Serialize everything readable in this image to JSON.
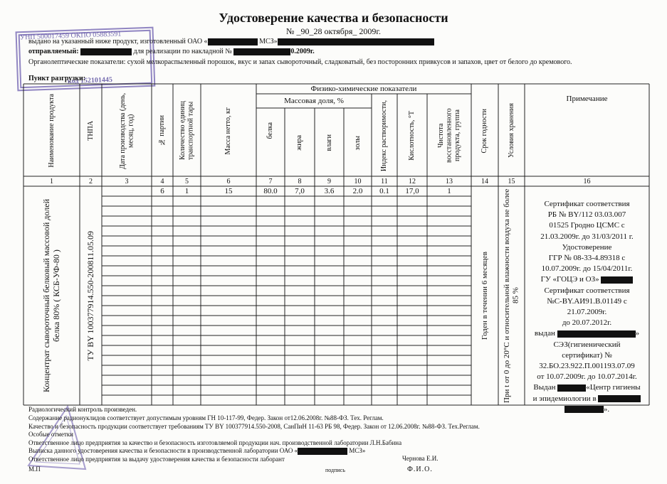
{
  "header": {
    "title": "Удостоверение качества и безопасности",
    "number": "№ _90_28  октября_  2009г.",
    "issued_prefix": "выдано на указанный ниже продукт, изготовленный ОАО «",
    "issued_suffix": " МСЗ»",
    "shipped_label": "отправляемый:",
    "shipped_text": " для реализации по накладной № ",
    "shipped_date": "0.2009г.",
    "organoleptic": "Органолептические показатели: сухой мелкораспыленный порошок, вкус и запах сывороточный, сладковатый, без посторонних привкусов и запахов, цвет от белого до кремового.",
    "unloading": "Пункт разгрузки:"
  },
  "stamp": [
    "УНП 500017459 ОКПО 05883591",
    "код 152101445"
  ],
  "table": {
    "group_header": "Физико-химические показатели",
    "mass_header": "Массовая доля, %",
    "columns": [
      "Наименование продукта",
      "ТНПА",
      "Дата производства (день, месяц, год)",
      "№ партии",
      "Количество единиц транспортной тары",
      "Масса нетто, кг",
      "белка",
      "жира",
      "влаги",
      "золы",
      "Индекс растворимости,",
      "Кислотность, °Т",
      "Чистота восстановленного продукта, группа",
      "Срок годности",
      "Условия хранения",
      "Примечание"
    ],
    "column_numbers": [
      1,
      2,
      3,
      4,
      5,
      6,
      7,
      8,
      9,
      10,
      11,
      12,
      13,
      14,
      15,
      16
    ],
    "row": {
      "product": "Концентрат сывороточный белковый массовой долей белка 80% ( КСБ-УФ-80 )",
      "standard": "ТУ BY 100377914.550-200811.05.09",
      "values": [
        "6",
        "1",
        "15",
        "80.0",
        "7,0",
        "3.6",
        "2.0",
        "0.1",
        "17,0",
        "1"
      ],
      "shelf_life": "Годен в течении 6 месяцев",
      "storage": "При t от 0 до 20°C и относительной влажности воздуха не более 85 %",
      "note": [
        "Сертификат соответствия",
        "РБ № BY/112 03.03.007",
        "01525 Гродно ЦСМС с",
        "21.03.2009г. до 31/03/2011 г.",
        "Удостоверение",
        "ГГР № 08-33-4.89318 с",
        "10.07.2009г. до 15/04/2011г.",
        "ГУ «ГОЦЭ и ОЗ»",
        "Сертификат соответствия",
        "№С-BY.АИ91.В.01149 с",
        "21.07.2009г.",
        "до 20.07.2012г.",
        [
          "выдан",
          "»"
        ],
        "СЭЗ(гигиенический",
        "сертификат) №",
        "32.БО.23.922.П.001193.07.09",
        "от 10.07.2009г. до 10.07.2014г.",
        [
          "Выдан",
          "«Центр гигиены"
        ],
        "и эпидемиологии в",
        "»."
      ]
    }
  },
  "footer": {
    "lines": [
      "Радиологический контроль произведен.",
      "Содержание радионуклидов соответствует допустимым уровням ГН 10-117-99, Федер. Закон от12.06.2008г. №88-ФЗ. Тех. Реглам.",
      "Качество и безопасность продукции соответствует требованиям ТУ BY 100377914.550-2008, СанПиН 11-63 РБ 98,  Федер. Закон от 12.06.2008г. №88-ФЗ. Тех.Реглам.",
      "Особые отметки",
      "Ответственное лицо предприятия за качество и безопасность изготовляемой продукции   нач. производственной лаборатории   Л.Н.Бабина",
      "Выписка данного удостоверения качества и безопасности в производственной лаборатории ОАО «",
      "Ответственное лицо предприятия за выдачу удостоверения качества и безопасности лаборант"
    ],
    "lab_suffix": " МСЗ»",
    "lab_assistant": "Чернова Е.И.",
    "seal": "М.П",
    "signature": "подпись",
    "name_label": "Ф.И.О."
  }
}
